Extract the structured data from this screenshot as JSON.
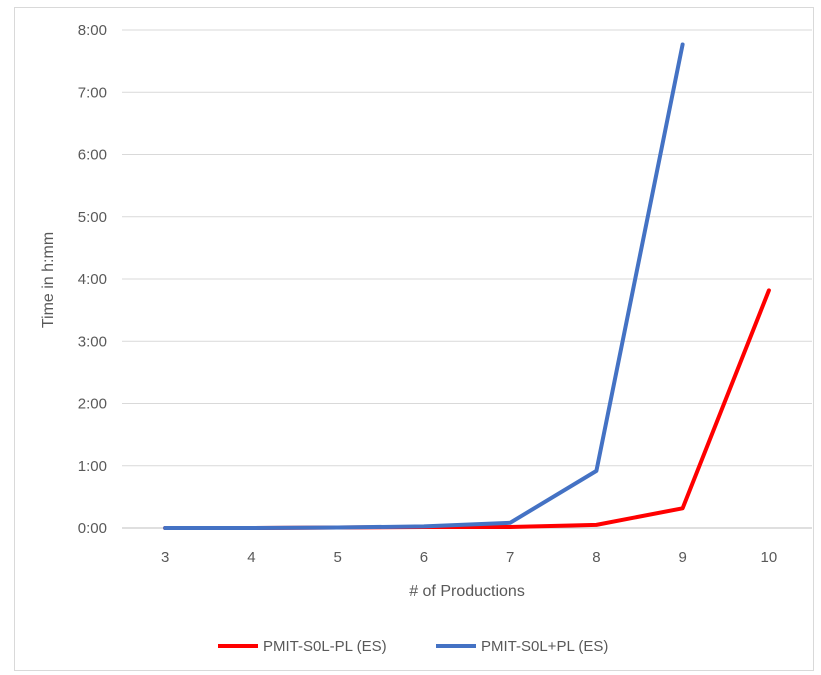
{
  "chart_data": {
    "type": "line",
    "xlabel": "# of Productions",
    "ylabel": "Time in h:mm",
    "categories": [
      "3",
      "4",
      "5",
      "6",
      "7",
      "8",
      "9",
      "10"
    ],
    "y_unit": "minutes",
    "ylim": [
      0,
      480
    ],
    "y_ticks": [
      0,
      60,
      120,
      180,
      240,
      300,
      360,
      420,
      480
    ],
    "y_tick_labels": [
      "0:00",
      "1:00",
      "2:00",
      "3:00",
      "4:00",
      "5:00",
      "6:00",
      "7:00",
      "8:00"
    ],
    "grid": true,
    "legend_position": "bottom",
    "series": [
      {
        "name": "PMIT-S0L-PL (ES)",
        "color": "#ff0000",
        "values": [
          0,
          0,
          0.5,
          1,
          1,
          3,
          19,
          229
        ]
      },
      {
        "name": "PMIT-S0L+PL (ES)",
        "color": "#4472c4",
        "values": [
          0,
          0,
          0.5,
          1.5,
          5,
          55,
          466,
          null
        ]
      }
    ]
  }
}
